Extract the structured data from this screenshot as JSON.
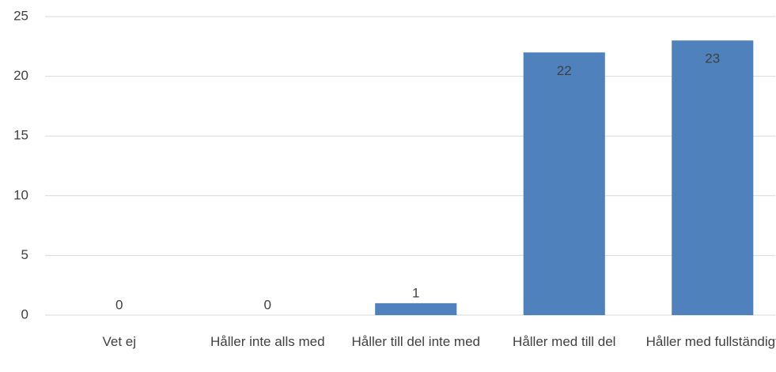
{
  "chart_data": {
    "type": "bar",
    "categories": [
      "Vet ej",
      "Håller inte alls med",
      "Håller till del inte med",
      "Håller med till del",
      "Håller med fullständigt"
    ],
    "values": [
      0,
      0,
      1,
      22,
      23
    ],
    "color": "#4f81bd",
    "ylim": [
      0,
      25
    ],
    "yticks": [
      0,
      5,
      10,
      15,
      20,
      25
    ],
    "grid": true
  }
}
